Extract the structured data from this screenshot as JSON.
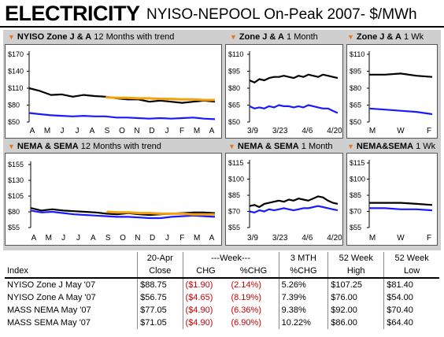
{
  "header": {
    "title": "ELECTRICITY",
    "subtitle": "NYISO-NEPOOL On-Peak 2007- $/MWh"
  },
  "colors": {
    "black_series": "#000000",
    "blue_series": "#1a1aff",
    "orange_series": "#f5a00c",
    "title_marker": "#e87722",
    "neg": "#d00000"
  },
  "panels": {
    "ny12": {
      "title_bold": "NYISO Zone J & A",
      "title_rest": " 12 Months with trend"
    },
    "ny1m": {
      "title_bold": "Zone J & A",
      "title_rest": " 1 Month"
    },
    "ny1w": {
      "title_bold": "Zone J & A",
      "title_rest": " 1 Wk"
    },
    "ne12": {
      "title_bold": "NEMA & SEMA",
      "title_rest": " 12 Months with trend"
    },
    "ne1m": {
      "title_bold": "NEMA & SEMA",
      "title_rest": " 1 Month"
    },
    "ne1w": {
      "title_bold": "NEMA&SEMA",
      "title_rest": " 1 Wk"
    }
  },
  "chart_data": [
    {
      "id": "ny12",
      "type": "line",
      "ylim": [
        50,
        170
      ],
      "yticks": [
        "$170",
        "$140",
        "$110",
        "$80",
        "$50"
      ],
      "yvals": [
        170,
        140,
        110,
        80,
        50
      ],
      "xticks": [
        "A",
        "M",
        "J",
        "J",
        "A",
        "S",
        "O",
        "N",
        "D",
        "J",
        "F",
        "M",
        "A"
      ],
      "grid": false,
      "series": [
        {
          "color": "black",
          "y": [
            110,
            105,
            98,
            99,
            95,
            98,
            96,
            95,
            92,
            90,
            90,
            86,
            88,
            86,
            84,
            86,
            88,
            86
          ]
        },
        {
          "color": "blue",
          "y": [
            66,
            64,
            62,
            61,
            60,
            61,
            60,
            60,
            58,
            58,
            57,
            56,
            57,
            56,
            57,
            58,
            56,
            55
          ]
        },
        {
          "color": "orange",
          "x0": 7,
          "y": [
            94,
            93,
            93,
            92,
            92,
            91,
            91,
            90,
            90,
            89,
            89
          ]
        }
      ]
    },
    {
      "id": "ny1m",
      "type": "line",
      "ylim": [
        50,
        110
      ],
      "yticks": [
        "$110",
        "$95",
        "$80",
        "$65",
        "$50"
      ],
      "yvals": [
        110,
        95,
        80,
        65,
        50
      ],
      "xticks": [
        "3/9",
        "3/23",
        "4/6",
        "4/20"
      ],
      "grid": false,
      "series": [
        {
          "color": "black",
          "y": [
            87,
            85,
            88,
            87,
            89,
            90,
            90,
            91,
            90,
            89,
            91,
            90,
            92,
            91,
            90,
            92,
            91,
            90,
            89
          ]
        },
        {
          "color": "blue",
          "y": [
            64,
            62,
            63,
            62,
            64,
            63,
            65,
            64,
            64,
            63,
            64,
            63,
            65,
            64,
            63,
            62,
            62,
            60,
            58
          ]
        }
      ]
    },
    {
      "id": "ny1w",
      "type": "line",
      "ylim": [
        50,
        110
      ],
      "yticks": [
        "$110",
        "$95",
        "$80",
        "$65",
        "$50"
      ],
      "yvals": [
        110,
        95,
        80,
        65,
        50
      ],
      "xticks": [
        "M",
        "W",
        "F"
      ],
      "grid": false,
      "series": [
        {
          "color": "black",
          "y": [
            92,
            92,
            93,
            91,
            90
          ]
        },
        {
          "color": "blue",
          "y": [
            62,
            61,
            60,
            59,
            57
          ]
        }
      ]
    },
    {
      "id": "ne12",
      "type": "line",
      "ylim": [
        55,
        155
      ],
      "yticks": [
        "$155",
        "$130",
        "$105",
        "$80",
        "$55"
      ],
      "yvals": [
        155,
        130,
        105,
        80,
        55
      ],
      "xticks": [
        "A",
        "M",
        "J",
        "J",
        "A",
        "S",
        "O",
        "N",
        "D",
        "J",
        "F",
        "M",
        "A"
      ],
      "grid": false,
      "series": [
        {
          "color": "black",
          "y": [
            86,
            82,
            84,
            82,
            81,
            80,
            79,
            77,
            76,
            78,
            76,
            75,
            76,
            77,
            78,
            79,
            79,
            78
          ]
        },
        {
          "color": "blue",
          "y": [
            82,
            79,
            80,
            78,
            76,
            75,
            74,
            73,
            72,
            72,
            71,
            70,
            70,
            72,
            73,
            74,
            73,
            72
          ]
        },
        {
          "color": "orange",
          "x0": 7,
          "y": [
            80,
            79,
            79,
            78,
            78,
            77,
            77,
            77,
            76,
            76,
            76
          ]
        }
      ]
    },
    {
      "id": "ne1m",
      "type": "line",
      "ylim": [
        55,
        115
      ],
      "yticks": [
        "$115",
        "$100",
        "$85",
        "$70",
        "$55"
      ],
      "yvals": [
        115,
        100,
        85,
        70,
        55
      ],
      "xticks": [
        "3/9",
        "3/23",
        "4/6",
        "4/20"
      ],
      "grid": false,
      "series": [
        {
          "color": "black",
          "y": [
            75,
            76,
            74,
            77,
            78,
            79,
            80,
            79,
            81,
            80,
            82,
            81,
            80,
            82,
            84,
            83,
            80,
            78,
            77
          ]
        },
        {
          "color": "blue",
          "y": [
            70,
            69,
            71,
            70,
            72,
            71,
            72,
            73,
            72,
            71,
            72,
            73,
            73,
            74,
            75,
            74,
            73,
            72,
            71
          ]
        }
      ]
    },
    {
      "id": "ne1w",
      "type": "line",
      "ylim": [
        55,
        115
      ],
      "yticks": [
        "$115",
        "$100",
        "$85",
        "$70",
        "$55"
      ],
      "yvals": [
        115,
        100,
        85,
        70,
        55
      ],
      "xticks": [
        "M",
        "W",
        "F"
      ],
      "grid": false,
      "series": [
        {
          "color": "black",
          "y": [
            78,
            78,
            78,
            77,
            76
          ]
        },
        {
          "color": "blue",
          "y": [
            73,
            73,
            72,
            72,
            71
          ]
        }
      ]
    }
  ],
  "table": {
    "head1": [
      "",
      "20-Apr",
      "---Week---",
      "3 MTH",
      "52 Week",
      "52 Week"
    ],
    "head2": [
      "Index",
      "Close",
      "CHG",
      "%CHG",
      "%CHG",
      "High",
      "Low"
    ],
    "rows": [
      [
        "NYISO Zone J May '07",
        "$88.75",
        "($1.90)",
        "(2.14%)",
        "5.26%",
        "$107.25",
        "$81.40"
      ],
      [
        "NYISO Zone A May '07",
        "$56.75",
        "($4.65)",
        "(8.19%)",
        "7.39%",
        "$76.00",
        "$54.00"
      ],
      [
        "MASS NEMA May '07",
        "$77.05",
        "($4.90)",
        "(6.36%)",
        "9.38%",
        "$92.00",
        "$70.40"
      ],
      [
        "MASS SEMA May '07",
        "$71.05",
        "($4.90)",
        "(6.90%)",
        "10.22%",
        "$86.00",
        "$64.40"
      ]
    ]
  }
}
